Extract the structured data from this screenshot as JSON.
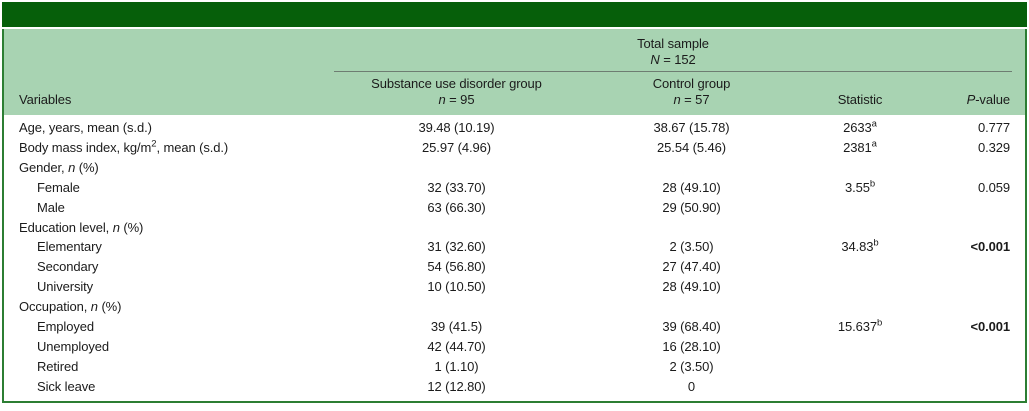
{
  "colors": {
    "top_bar": "#065f0a",
    "header_bg": "#a8d3b2",
    "border_green": "#2c7e33",
    "rule": "#6e7d72"
  },
  "table": {
    "header": {
      "total_sample": {
        "line1": "Total sample",
        "n_it": "N",
        "n_rest": " = 152"
      },
      "col_variables": "Variables",
      "group1": {
        "name": "Substance use disorder group",
        "n_it": "n",
        "n_rest": " = 95"
      },
      "group2": {
        "name": "Control group",
        "n_it": "n",
        "n_rest": " = 57"
      },
      "col_statistic": "Statistic",
      "pvalue": {
        "it": "P",
        "rest": "-value"
      }
    },
    "rows": [
      {
        "label": {
          "pre": "Age, years, mean (s.d.)",
          "sup": "",
          "it": "",
          "post": ""
        },
        "sud": "39.48 (10.19)",
        "ctrl": "38.67 (15.78)",
        "stat": "2633",
        "stat_sup": "a",
        "p": "0.777"
      },
      {
        "label": {
          "pre": "Body mass index, kg/m",
          "sup": "2",
          "it": "",
          "post": ", mean (s.d.)"
        },
        "sud": "25.97 (4.96)",
        "ctrl": "25.54 (5.46)",
        "stat": "2381",
        "stat_sup": "a",
        "p": "0.329"
      },
      {
        "label": {
          "pre": "Gender, ",
          "sup": "",
          "it": "n",
          "post": " (%)"
        },
        "sud": "",
        "ctrl": "",
        "stat": "",
        "stat_sup": "",
        "p": ""
      },
      {
        "label": {
          "pre": "Female",
          "sup": "",
          "it": "",
          "post": ""
        },
        "sud": "32 (33.70)",
        "ctrl": "28 (49.10)",
        "stat": "3.55",
        "stat_sup": "b",
        "p": "0.059"
      },
      {
        "label": {
          "pre": "Male",
          "sup": "",
          "it": "",
          "post": ""
        },
        "sud": "63 (66.30)",
        "ctrl": "29 (50.90)",
        "stat": "",
        "stat_sup": "",
        "p": ""
      },
      {
        "label": {
          "pre": "Education level, ",
          "sup": "",
          "it": "n",
          "post": " (%)"
        },
        "sud": "",
        "ctrl": "",
        "stat": "",
        "stat_sup": "",
        "p": ""
      },
      {
        "label": {
          "pre": "Elementary",
          "sup": "",
          "it": "",
          "post": ""
        },
        "sud": "31 (32.60)",
        "ctrl": "2 (3.50)",
        "stat": "34.83",
        "stat_sup": "b",
        "p": "<0.001"
      },
      {
        "label": {
          "pre": "Secondary",
          "sup": "",
          "it": "",
          "post": ""
        },
        "sud": "54 (56.80)",
        "ctrl": "27 (47.40)",
        "stat": "",
        "stat_sup": "",
        "p": ""
      },
      {
        "label": {
          "pre": "University",
          "sup": "",
          "it": "",
          "post": ""
        },
        "sud": "10 (10.50)",
        "ctrl": "28 (49.10)",
        "stat": "",
        "stat_sup": "",
        "p": ""
      },
      {
        "label": {
          "pre": "Occupation, ",
          "sup": "",
          "it": "n",
          "post": " (%)"
        },
        "sud": "",
        "ctrl": "",
        "stat": "",
        "stat_sup": "",
        "p": ""
      },
      {
        "label": {
          "pre": "Employed",
          "sup": "",
          "it": "",
          "post": ""
        },
        "sud": "39 (41.5)",
        "ctrl": "39 (68.40)",
        "stat": "15.637",
        "stat_sup": "b",
        "p": "<0.001"
      },
      {
        "label": {
          "pre": "Unemployed",
          "sup": "",
          "it": "",
          "post": ""
        },
        "sud": "42 (44.70)",
        "ctrl": "16 (28.10)",
        "stat": "",
        "stat_sup": "",
        "p": ""
      },
      {
        "label": {
          "pre": "Retired",
          "sup": "",
          "it": "",
          "post": ""
        },
        "sud": "1 (1.10)",
        "ctrl": "2 (3.50)",
        "stat": "",
        "stat_sup": "",
        "p": ""
      },
      {
        "label": {
          "pre": "Sick leave",
          "sup": "",
          "it": "",
          "post": ""
        },
        "sud": "12 (12.80)",
        "ctrl": "0",
        "stat": "",
        "stat_sup": "",
        "p": ""
      }
    ]
  }
}
